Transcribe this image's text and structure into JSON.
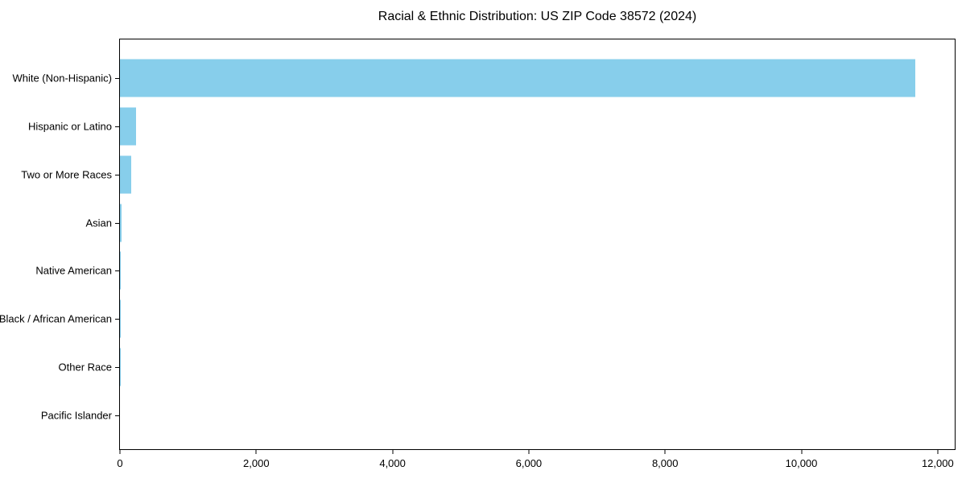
{
  "chart_data": {
    "type": "bar",
    "orientation": "horizontal",
    "title": "Racial & Ethnic Distribution: US ZIP Code 38572 (2024)",
    "categories": [
      "White (Non-Hispanic)",
      "Hispanic or Latino",
      "Two or More Races",
      "Asian",
      "Native American",
      "Black / African American",
      "Other Race",
      "Pacific Islander"
    ],
    "values": [
      11670,
      232,
      170,
      18,
      8,
      4,
      2,
      0
    ],
    "xlabel": "",
    "ylabel": "",
    "xlim": [
      0,
      12250
    ],
    "x_ticks": [
      0,
      2000,
      4000,
      6000,
      8000,
      10000,
      12000
    ],
    "x_tick_labels": [
      "0",
      "2,000",
      "4,000",
      "6,000",
      "8,000",
      "10,000",
      "12,000"
    ],
    "bar_color": "#87CEEB",
    "background_color": "#ffffff",
    "text_color": "#000000",
    "grid": false,
    "legend": "none"
  }
}
